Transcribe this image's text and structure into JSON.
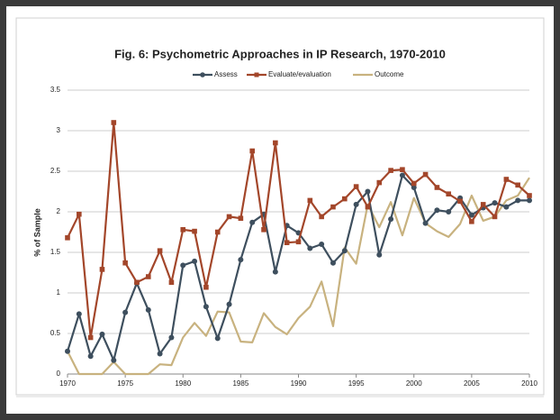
{
  "chart_data": {
    "type": "line",
    "title": "Fig. 6: Psychometric Approaches in IP Research, 1970-2010",
    "y_label": "% of Sample",
    "x": [
      1970,
      1971,
      1972,
      1973,
      1974,
      1975,
      1976,
      1977,
      1978,
      1979,
      1980,
      1981,
      1982,
      1983,
      1984,
      1985,
      1986,
      1987,
      1988,
      1989,
      1990,
      1991,
      1992,
      1993,
      1994,
      1995,
      1996,
      1997,
      1998,
      1999,
      2000,
      2001,
      2002,
      2003,
      2004,
      2005,
      2006,
      2007,
      2008,
      2009,
      2010
    ],
    "xlim": [
      1970,
      2010
    ],
    "xticks": [
      1970,
      1975,
      1980,
      1985,
      1990,
      1995,
      2000,
      2005,
      2010
    ],
    "ylim": [
      0,
      3.5
    ],
    "yticks": [
      0,
      0.5,
      1,
      1.5,
      2,
      2.5,
      3,
      3.5
    ],
    "grid": true,
    "legend": "top",
    "series": [
      {
        "name": "Assess",
        "color": "#3e4f5e",
        "marker": "circle",
        "values": [
          0.28,
          0.74,
          0.22,
          0.49,
          0.17,
          0.76,
          1.12,
          0.79,
          0.25,
          0.45,
          1.34,
          1.39,
          0.83,
          0.44,
          0.86,
          1.41,
          1.87,
          1.97,
          1.26,
          1.83,
          1.74,
          1.55,
          1.6,
          1.37,
          1.52,
          2.09,
          2.25,
          1.47,
          1.91,
          2.45,
          2.3,
          1.86,
          2.02,
          2.0,
          2.17,
          1.96,
          2.05,
          2.11,
          2.06,
          2.14,
          2.14
        ]
      },
      {
        "name": "Evaluate/evaluation",
        "color": "#a3462a",
        "marker": "square",
        "values": [
          1.68,
          1.97,
          0.45,
          1.29,
          3.1,
          1.37,
          1.13,
          1.2,
          1.52,
          1.13,
          1.78,
          1.76,
          1.07,
          1.75,
          1.94,
          1.92,
          2.75,
          1.78,
          2.85,
          1.62,
          1.63,
          2.14,
          1.94,
          2.06,
          2.16,
          2.31,
          2.06,
          2.36,
          2.51,
          2.52,
          2.35,
          2.46,
          2.3,
          2.22,
          2.13,
          1.88,
          2.09,
          1.94,
          2.4,
          2.33,
          2.2
        ]
      },
      {
        "name": "Outcome",
        "color": "#c8b27f",
        "marker": "none",
        "values": [
          0.28,
          0,
          0,
          0,
          0.15,
          0,
          0,
          0,
          0.12,
          0.11,
          0.45,
          0.63,
          0.47,
          0.77,
          0.76,
          0.4,
          0.39,
          0.75,
          0.58,
          0.49,
          0.69,
          0.83,
          1.14,
          0.59,
          1.56,
          1.36,
          2.09,
          1.81,
          2.12,
          1.71,
          2.17,
          1.86,
          1.76,
          1.69,
          1.85,
          2.2,
          1.89,
          1.94,
          2.14,
          2.2,
          2.42
        ]
      }
    ]
  }
}
